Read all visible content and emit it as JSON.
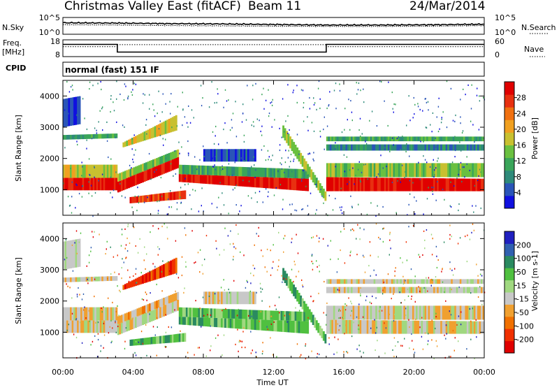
{
  "header": {
    "station": "Christmas Valley East (fitACF)",
    "beam": "Beam 11",
    "date": "24/Mar/2014"
  },
  "strip_nsky": {
    "left_label": "N.Sky",
    "right_label": "N.Search",
    "left_ticks": [
      "10^5",
      "10^0"
    ],
    "right_ticks": [
      "10^5",
      "10^0"
    ]
  },
  "strip_freq": {
    "left_label_1": "Freq.",
    "left_label_2": "[MHz]",
    "right_label": "Nave",
    "left_ticks": [
      "18",
      "8"
    ],
    "right_ticks": [
      "60",
      "0"
    ]
  },
  "cpid": {
    "label": "CPID",
    "mode_text": "normal (fast) 151 IF"
  },
  "chart_data": [
    {
      "type": "line",
      "name": "noise",
      "x": [
        0,
        3,
        6,
        9,
        12,
        15,
        18,
        21,
        24
      ],
      "series": [
        {
          "name": "N.Sky",
          "values": [
            3.6,
            3.5,
            3.3,
            3.2,
            3.0,
            2.8,
            2.8,
            2.9,
            3.1
          ]
        },
        {
          "name": "N.Search",
          "values": [
            2.9,
            2.8,
            2.6,
            2.5,
            2.4,
            2.3,
            2.3,
            2.4,
            2.6
          ]
        }
      ]
    },
    {
      "type": "line",
      "name": "frequency",
      "series": [
        {
          "name": "Freq. [MHz]",
          "x": [
            0,
            3.1,
            3.1,
            15.0,
            15.0,
            24
          ],
          "values": [
            15.5,
            15.5,
            10.5,
            10.5,
            15.5,
            15.5
          ]
        },
        {
          "name": "Nave",
          "x": [
            0,
            3.1,
            3.1,
            15.0,
            15.0,
            24
          ],
          "values": [
            36,
            36,
            44,
            44,
            36,
            36
          ]
        }
      ]
    },
    {
      "type": "heatmap",
      "name": "power",
      "ylabel": "Slant Range [km]",
      "yticks": [
        "4000",
        "3000",
        "2000",
        "1000"
      ],
      "ylim": [
        180,
        4500
      ],
      "colorbar": {
        "label": "Power [dB]",
        "ticks": [
          "28",
          "24",
          "20",
          "16",
          "12",
          "8",
          "4"
        ],
        "range": [
          0,
          30
        ],
        "colors": [
          "#1010e0",
          "#2a55b8",
          "#2e8a7a",
          "#3aa55a",
          "#6ac040",
          "#c8c030",
          "#f0a020",
          "#f07010",
          "#e83010",
          "#e00000"
        ]
      }
    },
    {
      "type": "heatmap",
      "name": "velocity",
      "ylabel": "Slant Range [km]",
      "yticks": [
        "4000",
        "3000",
        "2000",
        "1000"
      ],
      "ylim": [
        180,
        4500
      ],
      "colorbar": {
        "label": "Velocity [m s-1]",
        "ticks": [
          "200",
          "100",
          "50",
          "15",
          "-15",
          "-50",
          "-100",
          "-200"
        ],
        "range": [
          -250,
          250
        ],
        "colors": [
          "#e00000",
          "#f03000",
          "#f07000",
          "#f0a030",
          "#c8c8c8",
          "#a0d880",
          "#50c040",
          "#2a8a60",
          "#3060b0",
          "#2020c0"
        ]
      }
    }
  ],
  "xaxis": {
    "ticks": [
      "00:00",
      "04:00",
      "08:00",
      "12:00",
      "16:00",
      "20:00",
      "00:00"
    ],
    "label": "Time UT"
  }
}
